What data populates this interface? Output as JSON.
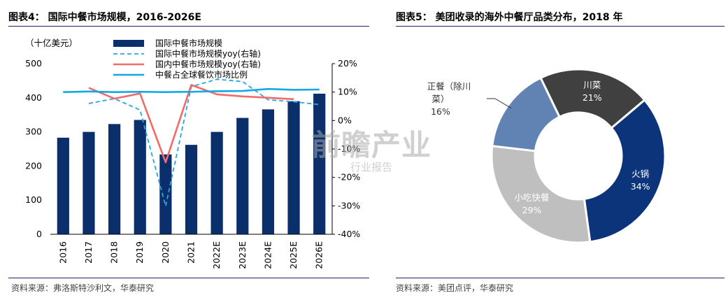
{
  "left_panel": {
    "title": "图表4：  国际中餐市场规模，2016-2026E",
    "source": "资料来源：弗洛斯特沙利文，华泰研究",
    "unit_label": "（十亿美元）"
  },
  "right_panel": {
    "title": "图表5：  美团收录的海外中餐厅品类分布，2018 年",
    "source": "资料来源：美团点评，华泰研究"
  },
  "watermark": {
    "line1": "前瞻产业",
    "line2": "行业报告"
  },
  "chart_data": [
    {
      "type": "bar",
      "categories": [
        "2016",
        "2017",
        "2018",
        "2019",
        "2020",
        "2021",
        "2022E",
        "2023E",
        "2024E",
        "2025E",
        "2026E"
      ],
      "ylim": [
        0,
        500
      ],
      "yticks": [
        0,
        100,
        200,
        300,
        400,
        500
      ],
      "y2lim": [
        -40,
        20
      ],
      "y2ticks": [
        "-40%",
        "-30%",
        "-20%",
        "-10%",
        "0%",
        "10%",
        "20%"
      ],
      "series": [
        {
          "name": "国际中餐市场规模",
          "kind": "bar",
          "axis": "left",
          "color": "#0b2f6b",
          "values": [
            283,
            300,
            323,
            335,
            234,
            262,
            300,
            341,
            366,
            390,
            412
          ]
        },
        {
          "name": "国际中餐市场规模yoy(右轴)",
          "kind": "line",
          "style": "dashed",
          "axis": "right",
          "color": "#26a6e0",
          "values": [
            null,
            6.0,
            7.7,
            3.7,
            -30.1,
            11.9,
            14.5,
            13.7,
            7.3,
            6.6,
            5.6
          ]
        },
        {
          "name": "国内中餐市场规模yoy(右轴)",
          "kind": "line",
          "style": "solid",
          "axis": "right",
          "color": "#f26b6b",
          "values": [
            null,
            11.5,
            7.7,
            9.5,
            -14.7,
            12.5,
            9.2,
            8.5,
            8.0,
            7.5,
            null
          ]
        },
        {
          "name": "中餐占全球餐饮市场比例",
          "kind": "line",
          "style": "solid",
          "axis": "right",
          "color": "#12a8e6",
          "values": [
            10.0,
            10.2,
            10.0,
            10.1,
            10.0,
            10.1,
            10.3,
            10.4,
            11.1,
            10.8,
            10.9
          ]
        }
      ]
    },
    {
      "type": "pie",
      "donut": true,
      "slices": [
        {
          "label": "川菜",
          "pct": "21%",
          "value": 21,
          "color": "#404040",
          "text_color": "#ffffff"
        },
        {
          "label": "火锅",
          "pct": "34%",
          "value": 34,
          "color": "#0b347a",
          "text_color": "#ffffff"
        },
        {
          "label": "小吃快餐",
          "pct": "29%",
          "value": 29,
          "color": "#bfbfbf",
          "text_color": "#ffffff"
        },
        {
          "label": "正餐（除川菜）",
          "label_lines": [
            "正餐（除川",
            "菜）"
          ],
          "pct": "16%",
          "value": 16,
          "color": "#6183b4",
          "text_color": "#333333"
        }
      ]
    }
  ]
}
